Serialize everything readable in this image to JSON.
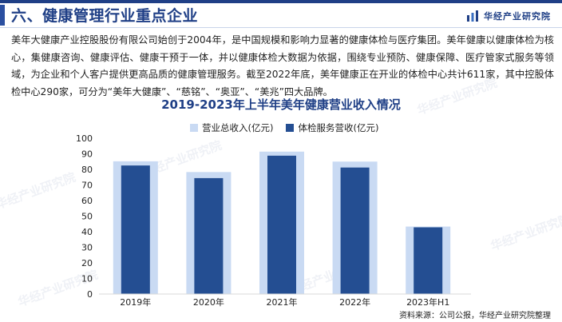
{
  "header": {
    "title": "六、健康管理行业重点企业",
    "brand": "华经产业研究院",
    "brand_logo_icon": "bar-chart-logo-icon"
  },
  "intro": {
    "text": "美年大健康产业控股股份有限公司始创于2004年，是中国规模和影响力显著的健康体检与医疗集团。美年健康以健康体检为核心，集健康咨询、健康评估、健康干预于一体，并以健康体检大数据为依据，围绕专业预防、健康保障、医疗管家式服务等领域，为企业和个人客户提供更高品质的健康管理服务。截至2022年底，美年健康正在开业的体检中心共计611家，其中控股体检中心290家，可分为“美年大健康”、“慈铭”、“奥亚”、“美兆”四大品牌。"
  },
  "watermark_text": "华经产业研究院",
  "colors": {
    "accent": "#1f3f86",
    "total_revenue": "#c9daf3",
    "checkup_revenue": "#244e92"
  },
  "chart_data": {
    "type": "bar",
    "title": "2019-2023年上半年美年健康营业收入情况",
    "categories": [
      "2019年",
      "2020年",
      "2021年",
      "2022年",
      "2023年H1"
    ],
    "series": [
      {
        "name": "营业总收入(亿元)",
        "values": [
          85.2,
          78.3,
          91.4,
          85.0,
          43.3
        ]
      },
      {
        "name": "体检服务营收(亿元)",
        "values": [
          82.5,
          74.4,
          88.8,
          81.2,
          42.8
        ]
      }
    ],
    "ylim": [
      0,
      100
    ],
    "yticks": [
      0,
      10,
      20,
      30,
      40,
      50,
      60,
      70,
      80,
      90,
      100
    ],
    "grid": false,
    "legend_position": "top-center",
    "xlabel": "",
    "ylabel": ""
  },
  "source": "资料来源：公司公报，华经产业研究院整理"
}
